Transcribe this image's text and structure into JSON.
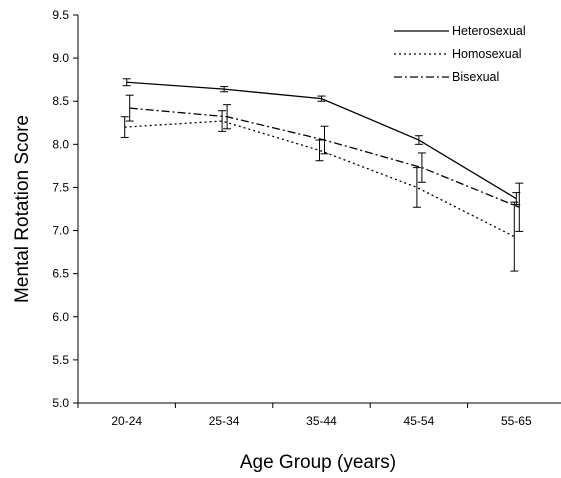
{
  "chart_data": {
    "type": "line",
    "title": "",
    "xlabel": "Age Group (years)",
    "ylabel": "Mental Rotation Score",
    "categories": [
      "20-24",
      "25-34",
      "35-44",
      "45-54",
      "55-65"
    ],
    "ylim": [
      5.0,
      9.5
    ],
    "yticks": [
      "5.0",
      "5.5",
      "6.0",
      "6.5",
      "7.0",
      "7.5",
      "8.0",
      "8.5",
      "9.0",
      "9.5"
    ],
    "grid": false,
    "legend_position": "top-right",
    "error_bars": true,
    "series": [
      {
        "name": "Heterosexual",
        "line_style": "solid",
        "values": [
          8.72,
          8.64,
          8.53,
          8.05,
          7.37
        ],
        "error": [
          0.04,
          0.03,
          0.03,
          0.05,
          0.07
        ]
      },
      {
        "name": "Homosexual",
        "line_style": "dotted",
        "values": [
          8.2,
          8.27,
          7.93,
          7.5,
          6.93
        ],
        "error": [
          0.12,
          0.12,
          0.12,
          0.23,
          0.4
        ]
      },
      {
        "name": "Bisexual",
        "line_style": "dash-dot",
        "values": [
          8.42,
          8.32,
          8.05,
          7.73,
          7.27
        ],
        "error": [
          0.15,
          0.14,
          0.16,
          0.17,
          0.28
        ]
      }
    ]
  }
}
